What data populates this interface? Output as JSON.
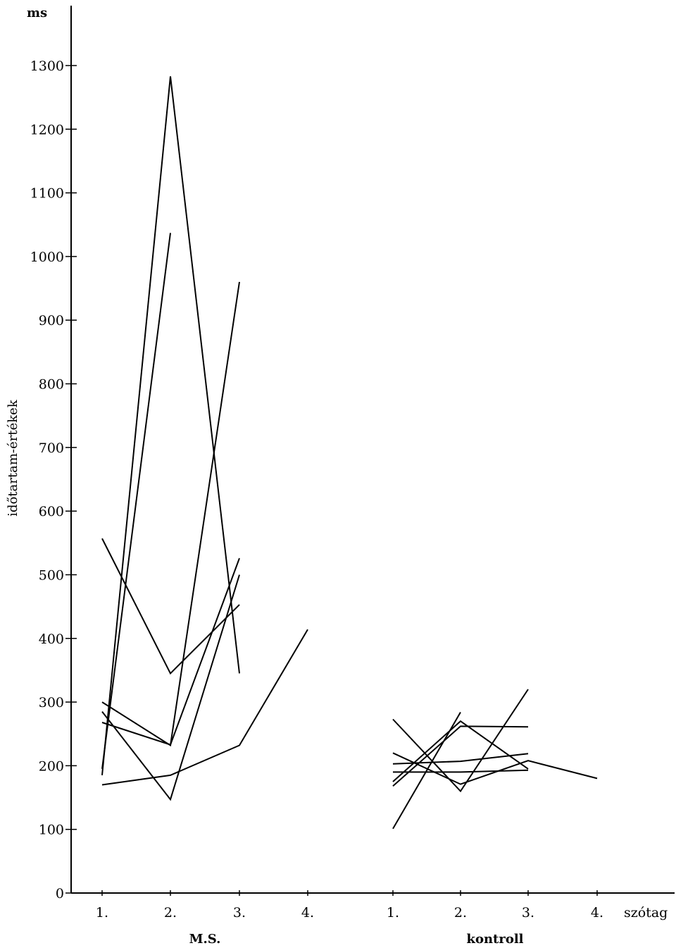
{
  "chart_data": {
    "type": "line",
    "unit": "ms",
    "ylabel": "időtartam-értékek",
    "xlabel": "szótag",
    "ylim": [
      0,
      1300
    ],
    "yticks": [
      0,
      100,
      200,
      300,
      400,
      500,
      600,
      700,
      800,
      900,
      1000,
      1100,
      1200,
      1300
    ],
    "grid": false,
    "groups": [
      {
        "name": "M.S.",
        "categories": [
          "1.",
          "2.",
          "3.",
          "4."
        ],
        "series": [
          {
            "values": [
              185,
              1283,
              345,
              null
            ]
          },
          {
            "values": [
              195,
              1037,
              null,
              null
            ]
          },
          {
            "values": [
              300,
              232,
              960,
              null
            ]
          },
          {
            "values": [
              557,
              345,
              453,
              null
            ]
          },
          {
            "values": [
              268,
              233,
              526,
              null
            ]
          },
          {
            "values": [
              285,
              147,
              500,
              null
            ]
          },
          {
            "values": [
              170,
              185,
              232,
              414
            ]
          }
        ]
      },
      {
        "name": "kontroll",
        "categories": [
          "1.",
          "2.",
          "3.",
          "4."
        ],
        "series": [
          {
            "values": [
              273,
              160,
              320,
              null
            ]
          },
          {
            "values": [
              101,
              284,
              null,
              null
            ]
          },
          {
            "values": [
              168,
              262,
              261,
              null
            ]
          },
          {
            "values": [
              220,
              171,
              208,
              180
            ]
          },
          {
            "values": [
              203,
              207,
              219,
              null
            ]
          },
          {
            "values": [
              190,
              190,
              193,
              null
            ]
          },
          {
            "values": [
              175,
              270,
              195,
              null
            ]
          }
        ]
      }
    ]
  }
}
